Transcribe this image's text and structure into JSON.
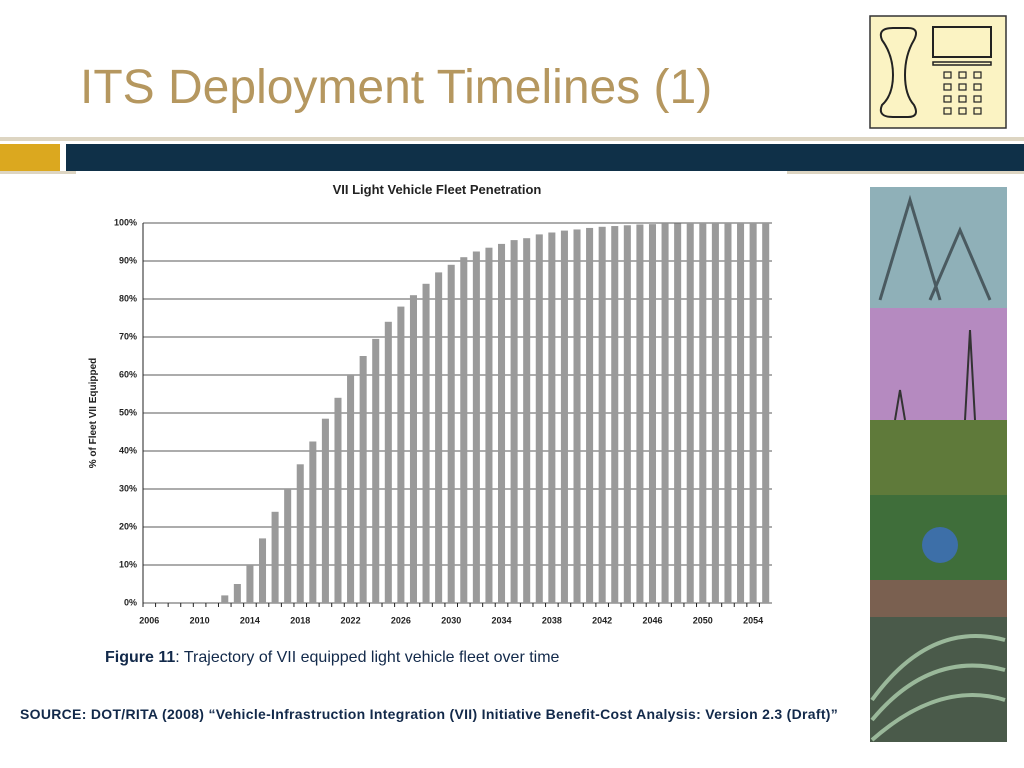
{
  "slide": {
    "title": "ITS Deployment Timelines (1)",
    "caption_label": "Figure 11",
    "caption_text": ": Trajectory of VII equipped light vehicle fleet over time",
    "source": "SOURCE: DOT/RITA (2008) “Vehicle-Infrastruction Integration (VII) Initiative Benefit-Cost Analysis: Version 2.3 (Draft)”"
  },
  "chart_data": {
    "type": "bar",
    "title": "VII Light Vehicle Fleet Penetration",
    "y_label": "% of Fleet VII Equipped",
    "categories": [
      "2006",
      null,
      null,
      null,
      "2010",
      null,
      null,
      null,
      "2014",
      null,
      null,
      null,
      "2018",
      null,
      null,
      null,
      "2022",
      null,
      null,
      null,
      "2026",
      null,
      null,
      null,
      "2030",
      null,
      null,
      null,
      "2034",
      null,
      null,
      null,
      "2038",
      null,
      null,
      null,
      "2042",
      null,
      null,
      null,
      "2046",
      null,
      null,
      null,
      "2050",
      null,
      null,
      null,
      "2054",
      null
    ],
    "values": [
      0,
      0,
      0,
      0,
      0,
      0,
      2,
      5,
      10,
      17,
      24,
      30,
      36.5,
      42.5,
      48.5,
      54,
      60,
      65,
      69.5,
      74,
      78,
      81,
      84,
      87,
      89,
      91,
      92.5,
      93.5,
      94.5,
      95.5,
      96,
      97,
      97.5,
      98,
      98.3,
      98.7,
      99,
      99.2,
      99.4,
      99.6,
      99.7,
      99.8,
      99.9,
      100,
      100,
      100,
      100,
      100,
      100,
      100
    ],
    "color": "#9a9a9a",
    "ylim": [
      0,
      100
    ],
    "yticks": [
      {
        "value": 0,
        "label": "0%"
      },
      {
        "value": 10,
        "label": "10%"
      },
      {
        "value": 20,
        "label": "20%"
      },
      {
        "value": 30,
        "label": "30%"
      },
      {
        "value": 40,
        "label": "40%"
      },
      {
        "value": 50,
        "label": "50%"
      },
      {
        "value": 60,
        "label": "60%"
      },
      {
        "value": 70,
        "label": "70%"
      },
      {
        "value": 80,
        "label": "80%"
      },
      {
        "value": 90,
        "label": "90%"
      },
      {
        "value": 100,
        "label": "100%"
      }
    ],
    "grid": true
  }
}
